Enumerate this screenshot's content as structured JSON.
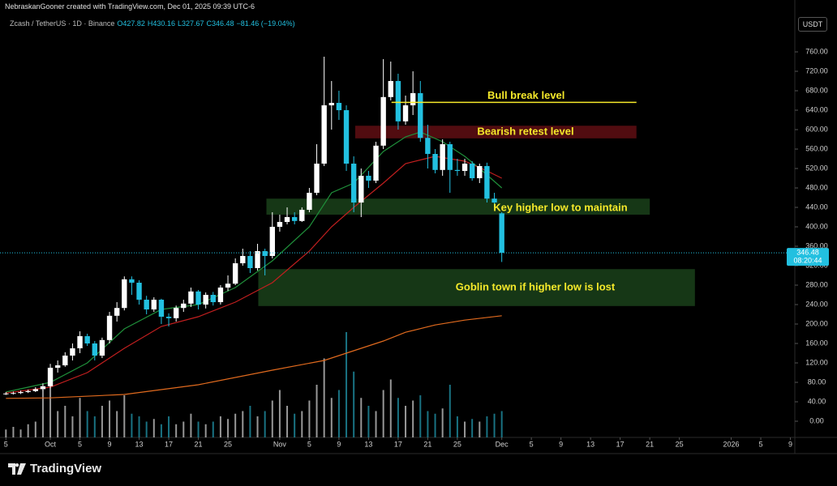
{
  "header": {
    "attribution": "NebraskanGooner created with TradingView.com, Dec 01, 2025 09:39 UTC-6",
    "symbol": "Zcash / TetherUS · 1D · Binance",
    "legend": [
      "O427.82",
      "H430.16",
      "L327.67",
      "C346.48",
      "−81.46 (−19.04%)"
    ],
    "currency": "USDT",
    "brand": "TradingView"
  },
  "chart_data": {
    "type": "candlestick",
    "x": [
      -6,
      -5,
      -4,
      -3,
      -2,
      -1,
      0,
      1,
      2,
      3,
      4,
      5,
      6,
      7,
      8,
      9,
      10,
      11,
      12,
      13,
      14,
      15,
      16,
      17,
      18,
      19,
      20,
      21,
      22,
      23,
      24,
      25,
      26,
      27,
      28,
      29,
      30,
      31,
      32,
      33,
      34,
      35,
      36,
      37,
      38,
      39,
      40,
      41,
      42,
      43,
      44,
      45,
      46,
      47,
      48,
      49,
      50,
      51,
      52,
      53,
      54,
      55,
      56,
      57,
      58,
      59,
      60,
      61
    ],
    "open": [
      56,
      57,
      58,
      60,
      62,
      66,
      72,
      110,
      115,
      135,
      150,
      175,
      160,
      135,
      167,
      217,
      233,
      292,
      285,
      250,
      230,
      250,
      215,
      212,
      233,
      242,
      267,
      240,
      260,
      245,
      275,
      283,
      325,
      340,
      315,
      350,
      340,
      400,
      410,
      420,
      412,
      435,
      470,
      530,
      650,
      655,
      640,
      530,
      450,
      505,
      495,
      567,
      667,
      700,
      617,
      650,
      675,
      583,
      550,
      517,
      570,
      517,
      515,
      530,
      500,
      525,
      458,
      427.82
    ],
    "high": [
      60,
      61,
      63,
      65,
      70,
      78,
      118,
      125,
      142,
      160,
      185,
      180,
      165,
      172,
      225,
      245,
      298,
      298,
      290,
      258,
      255,
      252,
      222,
      238,
      250,
      275,
      270,
      265,
      266,
      280,
      300,
      335,
      355,
      350,
      365,
      355,
      430,
      425,
      440,
      430,
      440,
      480,
      570,
      750,
      700,
      680,
      650,
      545,
      520,
      515,
      575,
      745,
      740,
      715,
      670,
      720,
      700,
      610,
      560,
      580,
      575,
      540,
      540,
      535,
      530,
      532,
      470,
      430.16
    ],
    "low": [
      54,
      55,
      56,
      58,
      60,
      63,
      68,
      100,
      112,
      125,
      140,
      155,
      125,
      130,
      160,
      205,
      228,
      260,
      240,
      220,
      225,
      200,
      195,
      205,
      225,
      235,
      230,
      232,
      238,
      240,
      268,
      280,
      320,
      305,
      310,
      300,
      335,
      390,
      405,
      405,
      410,
      430,
      465,
      525,
      600,
      620,
      515,
      430,
      420,
      480,
      490,
      560,
      660,
      600,
      610,
      630,
      575,
      520,
      510,
      505,
      470,
      505,
      505,
      495,
      490,
      450,
      440,
      327.67
    ],
    "close": [
      57,
      58,
      60,
      62,
      66,
      72,
      110,
      115,
      135,
      150,
      175,
      160,
      135,
      167,
      217,
      233,
      292,
      285,
      250,
      230,
      250,
      215,
      212,
      233,
      242,
      267,
      240,
      260,
      245,
      275,
      283,
      325,
      340,
      315,
      350,
      340,
      400,
      410,
      420,
      412,
      435,
      470,
      530,
      650,
      655,
      640,
      530,
      450,
      505,
      495,
      567,
      667,
      700,
      617,
      650,
      675,
      583,
      550,
      517,
      570,
      517,
      515,
      530,
      500,
      525,
      458,
      450,
      346.48
    ],
    "up_color": "#ffffff",
    "down_color": "#22c0e0",
    "volume": {
      "values": [
        3,
        4,
        3,
        5,
        6,
        18,
        23,
        10,
        12,
        8,
        15,
        10,
        8,
        12,
        14,
        10,
        16,
        9,
        8,
        6,
        7,
        5,
        8,
        5,
        6,
        9,
        6,
        5,
        6,
        8,
        7,
        9,
        10,
        12,
        8,
        10,
        14,
        18,
        12,
        9,
        10,
        14,
        20,
        30,
        15,
        18,
        40,
        25,
        15,
        12,
        10,
        18,
        22,
        15,
        12,
        14,
        16,
        10,
        9,
        11,
        20,
        8,
        6,
        7,
        6,
        8,
        9,
        10
      ],
      "ylim": [
        0,
        100
      ]
    },
    "lines": [
      {
        "x": [
          -6,
          0,
          5,
          10,
          15,
          20,
          25,
          30,
          35,
          38,
          41,
          45,
          48,
          50,
          53,
          56,
          58,
          61
        ],
        "values": [
          60,
          80,
          120,
          190,
          230,
          240,
          275,
          330,
          400,
          470,
          490,
          555,
          585,
          595,
          575,
          545,
          520,
          480
        ],
        "color": "#1f8f3a"
      },
      {
        "x": [
          -6,
          0,
          5,
          10,
          15,
          20,
          25,
          30,
          35,
          38,
          41,
          45,
          48,
          52,
          56,
          59,
          61
        ],
        "values": [
          58,
          70,
          100,
          150,
          195,
          215,
          245,
          285,
          350,
          400,
          440,
          490,
          530,
          545,
          535,
          515,
          500
        ],
        "color": "#c21f1f"
      },
      {
        "x": [
          -6,
          0,
          10,
          20,
          30,
          37,
          40,
          45,
          48,
          52,
          56,
          61
        ],
        "values": [
          47,
          48,
          55,
          75,
          105,
          125,
          140,
          165,
          183,
          198,
          208,
          217
        ],
        "color": "#e06a1e"
      }
    ],
    "zones": [
      {
        "label": "Bearish retest level",
        "low": 582,
        "high": 608,
        "x": [
          41.2,
          79.2
        ],
        "color": "#5a0d12"
      },
      {
        "label": "Key higher low to maintain",
        "low": 425,
        "high": 458,
        "x": [
          29.2,
          81
        ],
        "color": "#183d18"
      },
      {
        "label": "Goblin town if higher low is lost",
        "low": 237,
        "high": 313,
        "x": [
          28.1,
          87.1
        ],
        "color": "#183d18"
      }
    ],
    "levels": [
      {
        "label": "Bull break level",
        "value": 656,
        "x": [
          46.1,
          79.2
        ],
        "color": "#f5e92a"
      }
    ],
    "annotation_color": "#f5e92a",
    "last_price": {
      "value": 346.48,
      "countdown": "08:20:44"
    },
    "xlim": [
      -6.8,
      100.6
    ],
    "xticks": [
      {
        "value": -6,
        "label": "5"
      },
      {
        "value": 0,
        "label": "Oct"
      },
      {
        "value": 4,
        "label": "5"
      },
      {
        "value": 8,
        "label": "9"
      },
      {
        "value": 12,
        "label": "13"
      },
      {
        "value": 16,
        "label": "17"
      },
      {
        "value": 20,
        "label": "21"
      },
      {
        "value": 24,
        "label": "25"
      },
      {
        "value": 31,
        "label": "Nov"
      },
      {
        "value": 35,
        "label": "5"
      },
      {
        "value": 39,
        "label": "9"
      },
      {
        "value": 43,
        "label": "13"
      },
      {
        "value": 47,
        "label": "17"
      },
      {
        "value": 51,
        "label": "21"
      },
      {
        "value": 55,
        "label": "25"
      },
      {
        "value": 61,
        "label": "Dec"
      },
      {
        "value": 65,
        "label": "5"
      },
      {
        "value": 69,
        "label": "9"
      },
      {
        "value": 73,
        "label": "13"
      },
      {
        "value": 77,
        "label": "17"
      },
      {
        "value": 81,
        "label": "21"
      },
      {
        "value": 85,
        "label": "25"
      },
      {
        "value": 92,
        "label": "2026"
      },
      {
        "value": 96,
        "label": "5"
      },
      {
        "value": 100,
        "label": "9"
      }
    ],
    "ylim": [
      -33.3,
      836.7
    ],
    "yticks": [
      {
        "value": 0,
        "label": "0.00"
      },
      {
        "value": 40,
        "label": "40.00"
      },
      {
        "value": 80,
        "label": "80.00"
      },
      {
        "value": 120,
        "label": "120.00"
      },
      {
        "value": 160,
        "label": "160.00"
      },
      {
        "value": 200,
        "label": "200.00"
      },
      {
        "value": 240,
        "label": "240.00"
      },
      {
        "value": 280,
        "label": "280.00"
      },
      {
        "value": 320,
        "label": "320.00"
      },
      {
        "value": 360,
        "label": "360.00"
      },
      {
        "value": 400,
        "label": "400.00"
      },
      {
        "value": 440,
        "label": "440.00"
      },
      {
        "value": 480,
        "label": "480.00"
      },
      {
        "value": 520,
        "label": "520.00"
      },
      {
        "value": 560,
        "label": "560.00"
      },
      {
        "value": 600,
        "label": "600.00"
      },
      {
        "value": 640,
        "label": "640.00"
      },
      {
        "value": 680,
        "label": "680.00"
      },
      {
        "value": 720,
        "label": "720.00"
      },
      {
        "value": 760,
        "label": "760.00"
      }
    ]
  }
}
